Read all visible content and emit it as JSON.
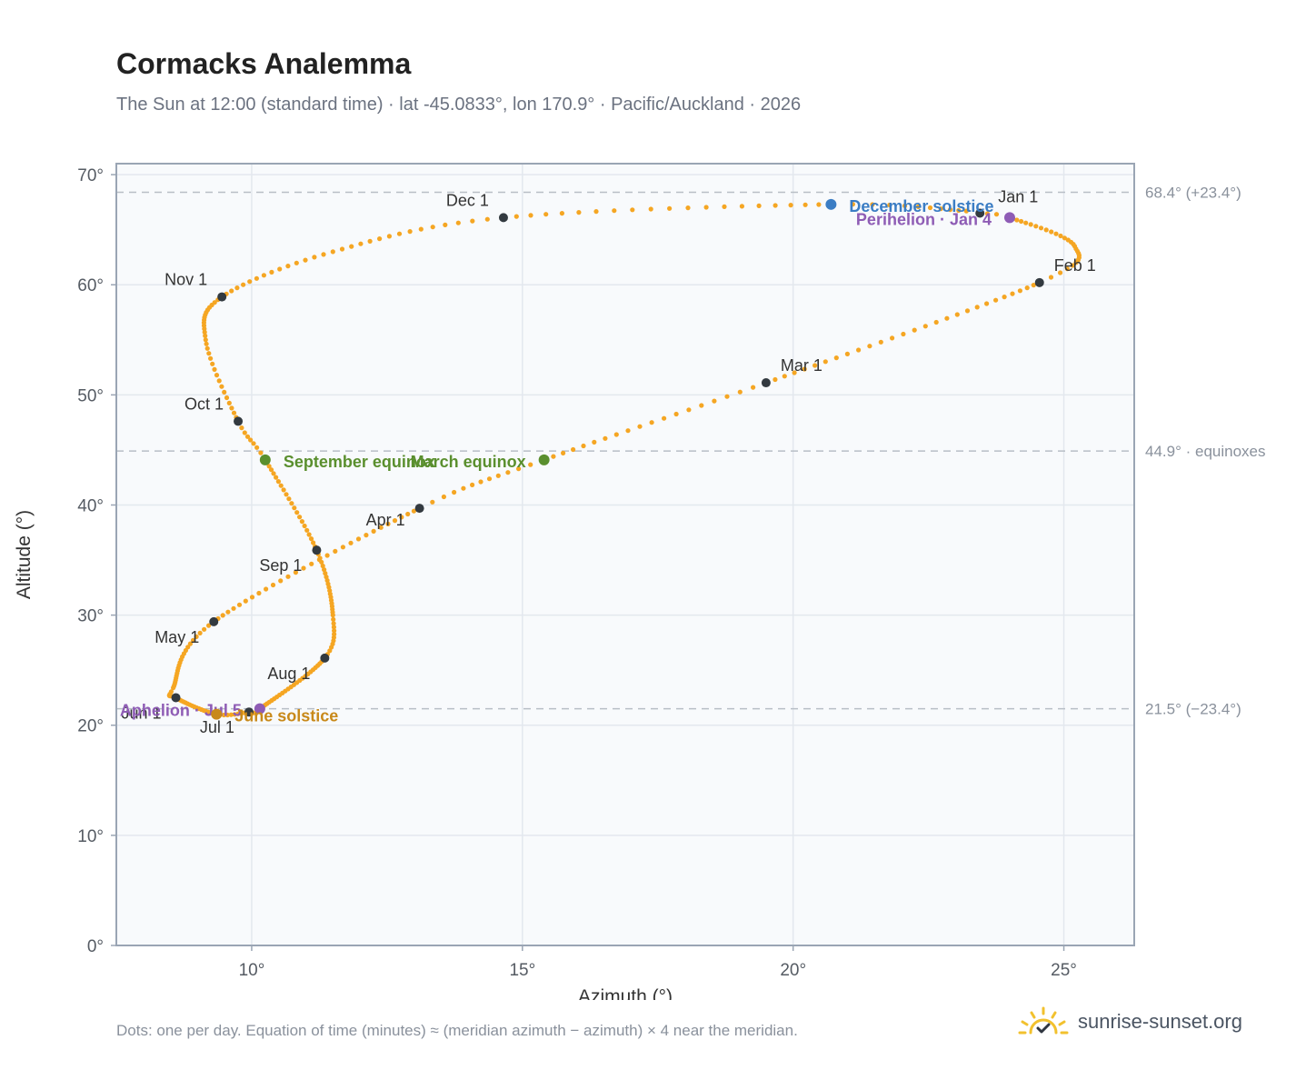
{
  "title": "Cormacks Analemma",
  "subtitle": "The Sun at 12:00 (standard time) · lat -45.0833°, lon 170.9° · Pacific/Auckland · 2026",
  "footnote": "Dots: one per day. Equation of time (minutes) ≈ (meridian azimuth − azimuth) × 4 near the meridian.",
  "brand": {
    "name": "sunrise-sunset.org",
    "icon": "sun-check-icon",
    "color": "#f2c12e"
  },
  "chart_data": {
    "type": "scatter",
    "xlabel": "Azimuth (°)",
    "ylabel": "Altitude (°)",
    "xlim": [
      7.5,
      26.3
    ],
    "ylim": [
      0,
      71
    ],
    "x_ticks": [
      10,
      15,
      20,
      25
    ],
    "x_tick_labels": [
      "10°",
      "15°",
      "20°",
      "25°"
    ],
    "y_ticks": [
      0,
      10,
      20,
      30,
      40,
      50,
      60,
      70
    ],
    "y_tick_labels": [
      "0°",
      "10°",
      "20°",
      "30°",
      "40°",
      "50°",
      "60°",
      "70°"
    ],
    "grid": true,
    "colors": {
      "path": "#f5a623",
      "month": "#333a40",
      "june": "#c8891a",
      "december": "#3b7dc4",
      "equinox": "#5a8f2e",
      "apsis": "#8e5cb5",
      "reference": "#b8bec6",
      "frame": "#9aa5b4",
      "plot_bg": "#f8fafc",
      "grid": "#e3e8ee"
    },
    "path_keypoints": [
      {
        "doy": 1,
        "az": 23.45,
        "alt": 66.5
      },
      {
        "doy": 4,
        "az": 24.0,
        "alt": 66.1
      },
      {
        "doy": 20,
        "az": 25.2,
        "alt": 63.5
      },
      {
        "doy": 32,
        "az": 24.55,
        "alt": 60.2
      },
      {
        "doy": 60,
        "az": 19.5,
        "alt": 51.1
      },
      {
        "doy": 79,
        "az": 15.4,
        "alt": 44.1
      },
      {
        "doy": 91,
        "az": 13.1,
        "alt": 39.7
      },
      {
        "doy": 121,
        "az": 9.3,
        "alt": 29.4
      },
      {
        "doy": 144,
        "az": 8.55,
        "alt": 23.4
      },
      {
        "doy": 152,
        "az": 8.6,
        "alt": 22.5
      },
      {
        "doy": 172,
        "az": 9.35,
        "alt": 21.0
      },
      {
        "doy": 182,
        "az": 9.95,
        "alt": 21.2
      },
      {
        "doy": 186,
        "az": 10.15,
        "alt": 21.5
      },
      {
        "doy": 213,
        "az": 11.35,
        "alt": 26.1
      },
      {
        "doy": 225,
        "az": 11.5,
        "alt": 30.0
      },
      {
        "doy": 244,
        "az": 11.2,
        "alt": 35.9
      },
      {
        "doy": 266,
        "az": 10.25,
        "alt": 44.1
      },
      {
        "doy": 274,
        "az": 9.75,
        "alt": 47.6
      },
      {
        "doy": 290,
        "az": 9.15,
        "alt": 55.0
      },
      {
        "doy": 305,
        "az": 9.45,
        "alt": 58.9
      },
      {
        "doy": 320,
        "az": 11.5,
        "alt": 63.0
      },
      {
        "doy": 335,
        "az": 14.65,
        "alt": 66.1
      },
      {
        "doy": 355,
        "az": 20.7,
        "alt": 67.3
      },
      {
        "doy": 365,
        "az": 23.2,
        "alt": 66.7
      }
    ],
    "month_markers": [
      {
        "label": "Jan 1",
        "az": 23.45,
        "alt": 66.5,
        "anchor": "start",
        "dx": 20,
        "dy": -12
      },
      {
        "label": "Feb 1",
        "az": 24.55,
        "alt": 60.2,
        "anchor": "start",
        "dx": 16,
        "dy": -13
      },
      {
        "label": "Mar 1",
        "az": 19.5,
        "alt": 51.1,
        "anchor": "start",
        "dx": 16,
        "dy": -13
      },
      {
        "label": "Apr 1",
        "az": 13.1,
        "alt": 39.7,
        "anchor": "end",
        "dx": -16,
        "dy": 19
      },
      {
        "label": "May 1",
        "az": 9.3,
        "alt": 29.4,
        "anchor": "end",
        "dx": -16,
        "dy": 23
      },
      {
        "label": "Jun 1",
        "az": 8.6,
        "alt": 22.5,
        "anchor": "end",
        "dx": -16,
        "dy": 23
      },
      {
        "label": "Jul 1",
        "az": 9.95,
        "alt": 21.2,
        "anchor": "end",
        "dx": -16,
        "dy": 23
      },
      {
        "label": "Aug 1",
        "az": 11.35,
        "alt": 26.1,
        "anchor": "end",
        "dx": -16,
        "dy": 23
      },
      {
        "label": "Sep 1",
        "az": 11.2,
        "alt": 35.9,
        "anchor": "end",
        "dx": -16,
        "dy": 23
      },
      {
        "label": "Oct 1",
        "az": 9.75,
        "alt": 47.6,
        "anchor": "end",
        "dx": -16,
        "dy": -13
      },
      {
        "label": "Nov 1",
        "az": 9.45,
        "alt": 58.9,
        "anchor": "end",
        "dx": -16,
        "dy": -13
      },
      {
        "label": "Dec 1",
        "az": 14.65,
        "alt": 66.1,
        "anchor": "end",
        "dx": -16,
        "dy": -13
      }
    ],
    "events": [
      {
        "label": "December solstice",
        "az": 20.7,
        "alt": 67.3,
        "color": "#3b7dc4",
        "anchor": "start",
        "dx": 20,
        "dy": 8
      },
      {
        "label": "Perihelion · Jan 4",
        "az": 24.0,
        "alt": 66.1,
        "color": "#8e5cb5",
        "anchor": "end",
        "dx": -20,
        "dy": 8
      },
      {
        "label": "March equinox",
        "az": 15.4,
        "alt": 44.1,
        "color": "#5a8f2e",
        "anchor": "end",
        "dx": -20,
        "dy": 8
      },
      {
        "label": "September equinox",
        "az": 10.25,
        "alt": 44.1,
        "color": "#5a8f2e",
        "anchor": "start",
        "dx": 20,
        "dy": 8
      },
      {
        "label": "Aphelion · Jul 5",
        "az": 10.15,
        "alt": 21.5,
        "color": "#8e5cb5",
        "anchor": "end",
        "dx": -20,
        "dy": 8
      },
      {
        "label": "June solstice",
        "az": 9.35,
        "alt": 21.0,
        "color": "#c8891a",
        "anchor": "start",
        "dx": 20,
        "dy": 8
      }
    ],
    "reference_lines": [
      {
        "alt": 68.4,
        "label": "68.4° (+23.4°)"
      },
      {
        "alt": 44.9,
        "label": "44.9° · equinoxes"
      },
      {
        "alt": 21.5,
        "label": "21.5° (−23.4°)"
      }
    ]
  }
}
